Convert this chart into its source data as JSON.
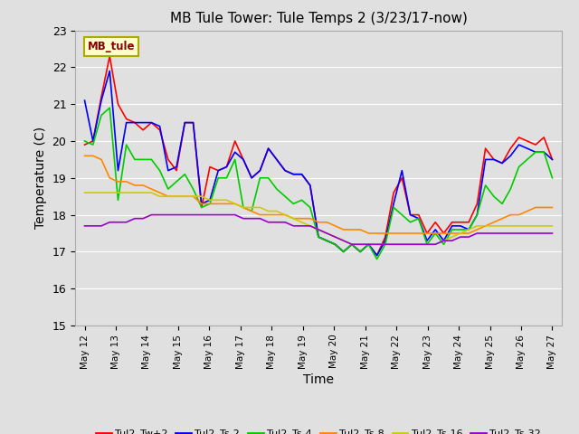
{
  "title": "MB Tule Tower: Tule Temps 2 (3/23/17-now)",
  "xlabel": "Time",
  "ylabel": "Temperature (C)",
  "ylim": [
    15.0,
    23.0
  ],
  "yticks": [
    15.0,
    16.0,
    17.0,
    18.0,
    19.0,
    20.0,
    21.0,
    22.0,
    23.0
  ],
  "bg_color": "#e0e0e0",
  "legend_label": "MB_tule",
  "legend_label_color": "#8B0000",
  "legend_label_bg": "#ffffcc",
  "legend_label_border": "#aaaa00",
  "series_keys": [
    "Tul2_Tw+2",
    "Tul2_Ts-2",
    "Tul2_Ts-4",
    "Tul2_Ts-8",
    "Tul2_Ts-16",
    "Tul2_Ts-32"
  ],
  "series_colors": [
    "#ff0000",
    "#0000ff",
    "#00cc00",
    "#ff8800",
    "#cccc00",
    "#9900cc"
  ],
  "series_lw": [
    1.2,
    1.2,
    1.2,
    1.2,
    1.2,
    1.2
  ],
  "x_tick_labels": [
    "May 12",
    "May 13",
    "May 14",
    "May 15",
    "May 16",
    "May 17",
    "May 18",
    "May 19",
    "May 20",
    "May 21",
    "May 22",
    "May 23",
    "May 24",
    "May 25",
    "May 26",
    "May 27"
  ],
  "Tul2_Tw+2": [
    19.9,
    20.0,
    21.2,
    22.3,
    21.0,
    20.6,
    20.5,
    20.3,
    20.5,
    20.3,
    19.5,
    19.2,
    20.5,
    20.5,
    18.2,
    19.3,
    19.2,
    19.3,
    20.0,
    19.5,
    19.0,
    19.2,
    19.8,
    19.5,
    19.2,
    19.1,
    19.1,
    18.8,
    17.4,
    17.3,
    17.2,
    17.0,
    17.2,
    17.0,
    17.2,
    16.9,
    17.4,
    18.6,
    19.0,
    18.0,
    18.0,
    17.5,
    17.8,
    17.5,
    17.8,
    17.8,
    17.8,
    18.3,
    19.8,
    19.5,
    19.4,
    19.8,
    20.1,
    20.0,
    19.9,
    20.1,
    19.5
  ],
  "Tul2_Ts-2": [
    21.1,
    20.0,
    21.1,
    21.9,
    19.2,
    20.5,
    20.5,
    20.5,
    20.5,
    20.4,
    19.2,
    19.3,
    20.5,
    20.5,
    18.3,
    18.4,
    19.2,
    19.3,
    19.7,
    19.5,
    19.0,
    19.2,
    19.8,
    19.5,
    19.2,
    19.1,
    19.1,
    18.8,
    17.4,
    17.3,
    17.2,
    17.0,
    17.2,
    17.0,
    17.2,
    16.9,
    17.3,
    18.3,
    19.2,
    18.0,
    17.9,
    17.3,
    17.6,
    17.3,
    17.7,
    17.7,
    17.6,
    18.0,
    19.5,
    19.5,
    19.4,
    19.6,
    19.9,
    19.8,
    19.7,
    19.7,
    19.5
  ],
  "Tul2_Ts-4": [
    20.0,
    19.9,
    20.7,
    20.9,
    18.4,
    19.9,
    19.5,
    19.5,
    19.5,
    19.2,
    18.7,
    18.9,
    19.1,
    18.7,
    18.2,
    18.3,
    19.0,
    19.0,
    19.5,
    18.2,
    18.1,
    19.0,
    19.0,
    18.7,
    18.5,
    18.3,
    18.4,
    18.2,
    17.4,
    17.3,
    17.2,
    17.0,
    17.2,
    17.0,
    17.2,
    16.8,
    17.2,
    18.2,
    18.0,
    17.8,
    17.9,
    17.2,
    17.5,
    17.2,
    17.6,
    17.6,
    17.6,
    18.0,
    18.8,
    18.5,
    18.3,
    18.7,
    19.3,
    19.5,
    19.7,
    19.7,
    19.0
  ],
  "Tul2_Ts-8": [
    19.6,
    19.6,
    19.5,
    19.0,
    18.9,
    18.9,
    18.8,
    18.8,
    18.7,
    18.6,
    18.5,
    18.5,
    18.5,
    18.5,
    18.3,
    18.3,
    18.3,
    18.3,
    18.3,
    18.2,
    18.1,
    18.0,
    18.0,
    18.0,
    18.0,
    17.9,
    17.9,
    17.9,
    17.8,
    17.8,
    17.7,
    17.6,
    17.6,
    17.6,
    17.5,
    17.5,
    17.5,
    17.5,
    17.5,
    17.5,
    17.5,
    17.5,
    17.5,
    17.5,
    17.5,
    17.5,
    17.5,
    17.6,
    17.7,
    17.8,
    17.9,
    18.0,
    18.0,
    18.1,
    18.2,
    18.2,
    18.2
  ],
  "Tul2_Ts-16": [
    18.6,
    18.6,
    18.6,
    18.6,
    18.6,
    18.6,
    18.6,
    18.6,
    18.6,
    18.5,
    18.5,
    18.5,
    18.5,
    18.5,
    18.5,
    18.4,
    18.4,
    18.4,
    18.3,
    18.2,
    18.2,
    18.2,
    18.1,
    18.1,
    18.0,
    17.9,
    17.8,
    17.7,
    17.6,
    17.5,
    17.4,
    17.3,
    17.2,
    17.2,
    17.2,
    17.2,
    17.2,
    17.2,
    17.2,
    17.2,
    17.2,
    17.2,
    17.2,
    17.3,
    17.4,
    17.5,
    17.6,
    17.7,
    17.7,
    17.7,
    17.7,
    17.7,
    17.7,
    17.7,
    17.7,
    17.7,
    17.7
  ],
  "Tul2_Ts-32": [
    17.7,
    17.7,
    17.7,
    17.8,
    17.8,
    17.8,
    17.9,
    17.9,
    18.0,
    18.0,
    18.0,
    18.0,
    18.0,
    18.0,
    18.0,
    18.0,
    18.0,
    18.0,
    18.0,
    17.9,
    17.9,
    17.9,
    17.8,
    17.8,
    17.8,
    17.7,
    17.7,
    17.7,
    17.6,
    17.5,
    17.4,
    17.3,
    17.2,
    17.2,
    17.2,
    17.2,
    17.2,
    17.2,
    17.2,
    17.2,
    17.2,
    17.2,
    17.2,
    17.3,
    17.3,
    17.4,
    17.4,
    17.5,
    17.5,
    17.5,
    17.5,
    17.5,
    17.5,
    17.5,
    17.5,
    17.5,
    17.5
  ]
}
